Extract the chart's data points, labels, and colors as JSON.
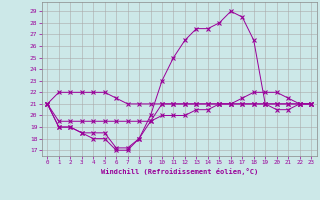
{
  "xlabel": "Windchill (Refroidissement éolien,°C)",
  "background_color": "#cce8e8",
  "grid_color": "#aaaaaa",
  "line_color": "#990099",
  "xlim": [
    -0.5,
    23.5
  ],
  "ylim": [
    16.5,
    29.8
  ],
  "yticks": [
    17,
    18,
    19,
    20,
    21,
    22,
    23,
    24,
    25,
    26,
    27,
    28,
    29
  ],
  "xticks": [
    0,
    1,
    2,
    3,
    4,
    5,
    6,
    7,
    8,
    9,
    10,
    11,
    12,
    13,
    14,
    15,
    16,
    17,
    18,
    19,
    20,
    21,
    22,
    23
  ],
  "series": [
    {
      "x": [
        0,
        1,
        2,
        3,
        4,
        5,
        6,
        7,
        8,
        9,
        10,
        11,
        12,
        13,
        14,
        15,
        16,
        17,
        18,
        19,
        20,
        21,
        22,
        23
      ],
      "y": [
        21,
        22,
        22,
        22,
        22,
        22,
        21.5,
        21,
        21,
        21,
        21,
        21,
        21,
        21,
        21,
        21,
        21,
        21,
        21,
        21,
        21,
        21,
        21,
        21
      ]
    },
    {
      "x": [
        0,
        1,
        2,
        3,
        4,
        5,
        6,
        7,
        8,
        9,
        10,
        11,
        12,
        13,
        14,
        15,
        16,
        17,
        18,
        19,
        20,
        21,
        22,
        23
      ],
      "y": [
        21,
        19,
        19,
        18.5,
        18,
        18,
        17,
        17,
        18,
        19.5,
        21,
        21,
        21,
        21,
        21,
        21,
        21,
        21,
        21,
        21,
        21,
        21,
        21,
        21
      ]
    },
    {
      "x": [
        0,
        1,
        2,
        3,
        4,
        5,
        6,
        7,
        8,
        9,
        10,
        11,
        12,
        13,
        14,
        15,
        16,
        17,
        18,
        19,
        20,
        21,
        22,
        23
      ],
      "y": [
        21,
        19,
        19,
        18.5,
        18.5,
        18.5,
        17.2,
        17.2,
        18,
        20,
        23,
        25,
        26.5,
        27.5,
        27.5,
        28,
        29,
        28.5,
        26.5,
        21,
        20.5,
        20.5,
        21,
        21
      ]
    },
    {
      "x": [
        0,
        1,
        2,
        3,
        4,
        5,
        6,
        7,
        8,
        9,
        10,
        11,
        12,
        13,
        14,
        15,
        16,
        17,
        18,
        19,
        20,
        21,
        22,
        23
      ],
      "y": [
        21,
        19.5,
        19.5,
        19.5,
        19.5,
        19.5,
        19.5,
        19.5,
        19.5,
        19.5,
        20,
        20,
        20,
        20.5,
        20.5,
        21,
        21,
        21.5,
        22,
        22,
        22,
        21.5,
        21,
        21
      ]
    }
  ]
}
